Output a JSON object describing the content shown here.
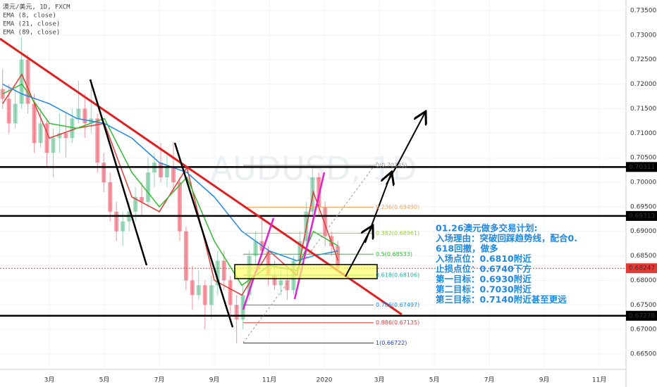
{
  "chart_data": {
    "type": "candlestick",
    "symbol": "澳元/美元, 1D, FXCM",
    "watermark": "AUDUSD, 1D",
    "ylim": [
      0.665,
      0.735
    ],
    "yticks": [
      {
        "value": 0.735,
        "label": "0.73500"
      },
      {
        "value": 0.73,
        "label": "0.73000"
      },
      {
        "value": 0.725,
        "label": "0.72500"
      },
      {
        "value": 0.72,
        "label": "0.72000"
      },
      {
        "value": 0.715,
        "label": "0.71500"
      },
      {
        "value": 0.71,
        "label": "0.71000"
      },
      {
        "value": 0.705,
        "label": "0.70500"
      },
      {
        "value": 0.7,
        "label": "0.70000"
      },
      {
        "value": 0.695,
        "label": "0.69500"
      },
      {
        "value": 0.69,
        "label": "0.69000"
      },
      {
        "value": 0.685,
        "label": "0.68500"
      },
      {
        "value": 0.68,
        "label": "0.68000"
      },
      {
        "value": 0.675,
        "label": "0.67500"
      },
      {
        "value": 0.67,
        "label": "0.67000"
      },
      {
        "value": 0.665,
        "label": "0.66500"
      }
    ],
    "xlim": [
      0.205,
      22.97
    ],
    "xticks": [
      {
        "value": 2,
        "label": "3月"
      },
      {
        "value": 4,
        "label": "5月"
      },
      {
        "value": 6,
        "label": "7月"
      },
      {
        "value": 8,
        "label": "9月"
      },
      {
        "value": 10,
        "label": "11月"
      },
      {
        "value": 12,
        "label": "2020"
      },
      {
        "value": 14,
        "label": "3月"
      },
      {
        "value": 16,
        "label": "5月"
      },
      {
        "value": 18,
        "label": "7月"
      },
      {
        "value": 20,
        "label": "9月"
      },
      {
        "value": 22,
        "label": "11月"
      }
    ],
    "up_color": "#53b987",
    "down_color": "#eb4d5c",
    "x": [
      0.3,
      0.53,
      0.76,
      0.99,
      1.22,
      1.45,
      1.68,
      1.91,
      2.14,
      2.37,
      2.6,
      2.83,
      3.06,
      3.29,
      3.52,
      3.75,
      3.98,
      4.21,
      4.44,
      4.67,
      4.9,
      5.13,
      5.36,
      5.59,
      5.82,
      6.05,
      6.28,
      6.51,
      6.74,
      6.97,
      7.2,
      7.43,
      7.66,
      7.89,
      8.12,
      8.35,
      8.58,
      8.81,
      9.04,
      9.27,
      9.5,
      9.73,
      9.96,
      10.19,
      10.42,
      10.65,
      10.88,
      11.11,
      11.34,
      11.57,
      11.8,
      12.03,
      12.26,
      12.49
    ],
    "ohlc": [
      [
        0.719,
        0.723,
        0.715,
        0.717
      ],
      [
        0.717,
        0.72,
        0.71,
        0.712
      ],
      [
        0.712,
        0.719,
        0.711,
        0.716
      ],
      [
        0.716,
        0.7296,
        0.715,
        0.725
      ],
      [
        0.725,
        0.726,
        0.714,
        0.716
      ],
      [
        0.716,
        0.718,
        0.706,
        0.708
      ],
      [
        0.708,
        0.715,
        0.707,
        0.712
      ],
      [
        0.712,
        0.713,
        0.703,
        0.706
      ],
      [
        0.706,
        0.711,
        0.701,
        0.709
      ],
      [
        0.709,
        0.714,
        0.706,
        0.71
      ],
      [
        0.71,
        0.714,
        0.705,
        0.709
      ],
      [
        0.709,
        0.715,
        0.708,
        0.713
      ],
      [
        0.713,
        0.7207,
        0.712,
        0.715
      ],
      [
        0.715,
        0.718,
        0.709,
        0.712
      ],
      [
        0.712,
        0.721,
        0.71,
        0.713
      ],
      [
        0.713,
        0.714,
        0.702,
        0.704
      ],
      [
        0.704,
        0.706,
        0.698,
        0.7
      ],
      [
        0.7,
        0.702,
        0.692,
        0.694
      ],
      [
        0.694,
        0.696,
        0.688,
        0.69
      ],
      [
        0.69,
        0.694,
        0.687,
        0.692
      ],
      [
        0.692,
        0.696,
        0.69,
        0.694
      ],
      [
        0.694,
        0.699,
        0.692,
        0.697
      ],
      [
        0.697,
        0.7,
        0.693,
        0.696
      ],
      [
        0.696,
        0.705,
        0.695,
        0.702
      ],
      [
        0.702,
        0.706,
        0.699,
        0.704
      ],
      [
        0.704,
        0.708,
        0.7,
        0.701
      ],
      [
        0.701,
        0.706,
        0.699,
        0.703
      ],
      [
        0.703,
        0.7082,
        0.698,
        0.7
      ],
      [
        0.7,
        0.701,
        0.688,
        0.69
      ],
      [
        0.69,
        0.691,
        0.678,
        0.68
      ],
      [
        0.68,
        0.683,
        0.674,
        0.677
      ],
      [
        0.677,
        0.682,
        0.676,
        0.679
      ],
      [
        0.679,
        0.68,
        0.67,
        0.675
      ],
      [
        0.675,
        0.681,
        0.672,
        0.679
      ],
      [
        0.679,
        0.686,
        0.677,
        0.684
      ],
      [
        0.684,
        0.686,
        0.678,
        0.68
      ],
      [
        0.68,
        0.681,
        0.673,
        0.675
      ],
      [
        0.675,
        0.677,
        0.6672,
        0.672
      ],
      [
        0.672,
        0.679,
        0.67,
        0.677
      ],
      [
        0.677,
        0.686,
        0.676,
        0.685
      ],
      [
        0.685,
        0.69,
        0.683,
        0.688
      ],
      [
        0.688,
        0.693,
        0.685,
        0.686
      ],
      [
        0.686,
        0.687,
        0.679,
        0.681
      ],
      [
        0.681,
        0.684,
        0.678,
        0.679
      ],
      [
        0.679,
        0.683,
        0.677,
        0.68
      ],
      [
        0.68,
        0.682,
        0.676,
        0.678
      ],
      [
        0.678,
        0.685,
        0.677,
        0.684
      ],
      [
        0.684,
        0.69,
        0.682,
        0.688
      ],
      [
        0.688,
        0.696,
        0.687,
        0.694
      ],
      [
        0.694,
        0.703,
        0.693,
        0.701
      ],
      [
        0.701,
        0.702,
        0.693,
        0.695
      ],
      [
        0.695,
        0.696,
        0.687,
        0.689
      ],
      [
        0.689,
        0.69,
        0.685,
        0.687
      ],
      [
        0.687,
        0.688,
        0.682,
        0.6825
      ]
    ],
    "series": [
      {
        "name": "EMA (8, close)",
        "color": "#e53935",
        "x": [
          0.3,
          1,
          2,
          3,
          4,
          5,
          6,
          7,
          8,
          9,
          10,
          11,
          11.6,
          12.5
        ],
        "values": [
          0.716,
          0.722,
          0.709,
          0.711,
          0.712,
          0.697,
          0.694,
          0.703,
          0.68,
          0.677,
          0.686,
          0.681,
          0.698,
          0.684
        ]
      },
      {
        "name": "EMA (21, close)",
        "color": "#2ebd2e",
        "x": [
          0.3,
          1,
          2,
          3,
          4,
          5,
          6,
          7,
          8,
          9,
          10,
          11,
          11.6,
          12.5
        ],
        "values": [
          0.718,
          0.72,
          0.712,
          0.711,
          0.713,
          0.702,
          0.695,
          0.701,
          0.688,
          0.679,
          0.683,
          0.682,
          0.69,
          0.687
        ]
      },
      {
        "name": "EMA (89, close)",
        "color": "#1e88e5",
        "x": [
          0.3,
          1,
          2,
          3,
          4,
          5,
          6,
          7,
          8,
          9,
          10,
          11,
          11.6,
          12.5
        ],
        "values": [
          0.72,
          0.718,
          0.716,
          0.713,
          0.712,
          0.709,
          0.704,
          0.702,
          0.697,
          0.69,
          0.686,
          0.684,
          0.685,
          0.686
        ]
      }
    ],
    "hlines": [
      {
        "value": 0.70311,
        "label": "0.70311",
        "color": "#000"
      },
      {
        "value": 0.69313,
        "label": "0.69313",
        "color": "#000"
      },
      {
        "value": 0.67278,
        "label": "0.67278",
        "color": "#000"
      }
    ],
    "last_price": {
      "value": 0.68247,
      "label": "0.68247",
      "color": "#e53935"
    },
    "fib": [
      {
        "value": 0.70345,
        "label": "0(0.70345)",
        "color": "#999999"
      },
      {
        "value": 0.6949,
        "label": "0.236(0.69490)",
        "color": "#f4a460"
      },
      {
        "value": 0.68961,
        "label": "0.382(0.68961)",
        "color": "#9acd32"
      },
      {
        "value": 0.68533,
        "label": "0.5(0.68533)",
        "color": "#2ebd2e"
      },
      {
        "value": 0.68106,
        "label": "0.618(0.68106)",
        "color": "#26a69a"
      },
      {
        "value": 0.67497,
        "label": "0.786(0.67497)",
        "color": "#1e88e5"
      },
      {
        "value": 0.67135,
        "label": "0.886(0.67135)",
        "color": "#e53935"
      },
      {
        "value": 0.66722,
        "label": "1(0.66722)",
        "color": "#1a3fa8"
      }
    ],
    "annotation": [
      "01.26澳元做多交易计划:",
      "入场理由：突破回踩趋势线，配合0.",
      "618回撤，做多",
      "入场点位：0.6810附近",
      "止损点位：0.6740下方",
      "第一目标：0.6930附近",
      "第二目标：0.7030附近",
      "第三目标：0.7140附近甚至更远"
    ]
  }
}
